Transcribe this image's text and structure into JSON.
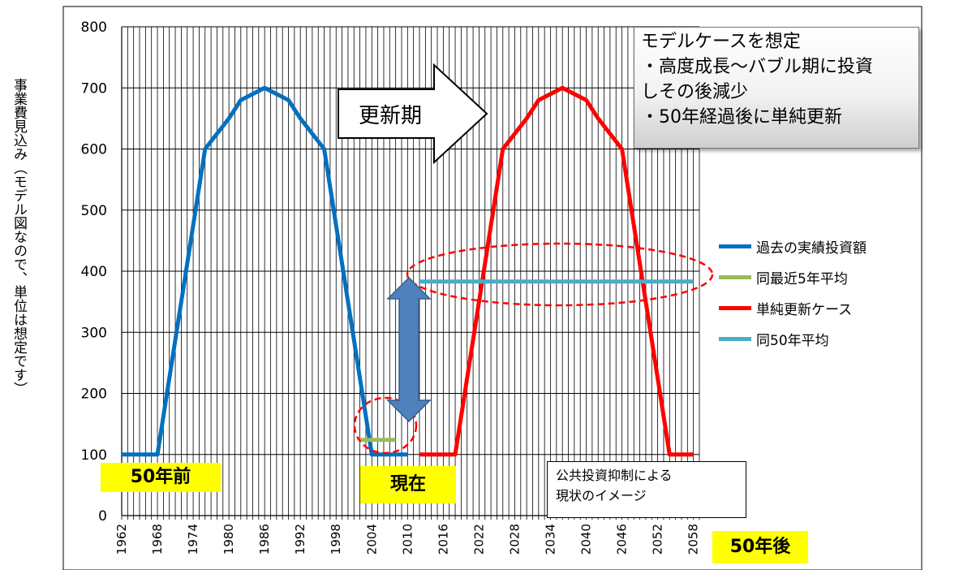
{
  "chart_data": {
    "type": "line",
    "ylim": [
      0,
      800
    ],
    "yticks": [
      0,
      100,
      200,
      300,
      400,
      500,
      600,
      700,
      800
    ],
    "xlim": [
      1962,
      2059
    ],
    "xticks": [
      1962,
      1968,
      1974,
      1980,
      1986,
      1992,
      1998,
      2004,
      2010,
      2016,
      2022,
      2028,
      2034,
      2040,
      2046,
      2052,
      2058
    ],
    "ylabel": "事業費見込み（モデル図なので、単位は想定です）",
    "grid": true,
    "legend_position": "right",
    "series": [
      {
        "name": "過去の実績投資額",
        "color": "#0070C0",
        "x": [
          1962,
          1968,
          1972,
          1976,
          1980,
          1982,
          1984,
          1986,
          1988,
          1990,
          1992,
          1996,
          2000,
          2004,
          2010
        ],
        "y": [
          100,
          100,
          350,
          600,
          650,
          680,
          690,
          700,
          690,
          680,
          650,
          600,
          350,
          100,
          100
        ]
      },
      {
        "name": "同最近5年平均",
        "color": "#9BBB59",
        "x": [
          2002,
          2008
        ],
        "y": [
          124,
          124
        ]
      },
      {
        "name": "単純更新ケース",
        "color": "#FF0000",
        "x": [
          2012,
          2018,
          2022,
          2026,
          2030,
          2032,
          2034,
          2036,
          2038,
          2040,
          2042,
          2046,
          2050,
          2054,
          2058
        ],
        "y": [
          100,
          100,
          350,
          600,
          650,
          680,
          690,
          700,
          690,
          680,
          650,
          600,
          350,
          100,
          100
        ]
      },
      {
        "name": "同50年平均",
        "color": "#4BACC6",
        "x": [
          2012,
          2058
        ],
        "y": [
          383,
          383
        ]
      }
    ],
    "annotations": {
      "note_box": [
        "モデルケースを想定",
        "・高度成長～バブル期に投資",
        "しその後減少",
        "・50年経過後に単純更新"
      ],
      "arrow_label": "更新期",
      "past_label": "50年前",
      "present_label": "現在",
      "future_label": "50年後",
      "info_box": [
        "公共投資抑制による",
        "現状のイメージ"
      ]
    }
  },
  "colors": {
    "highlight_yellow": "#FFFF00",
    "gap_arrow": "#4F81BD",
    "ellipse": "#FF0000"
  }
}
